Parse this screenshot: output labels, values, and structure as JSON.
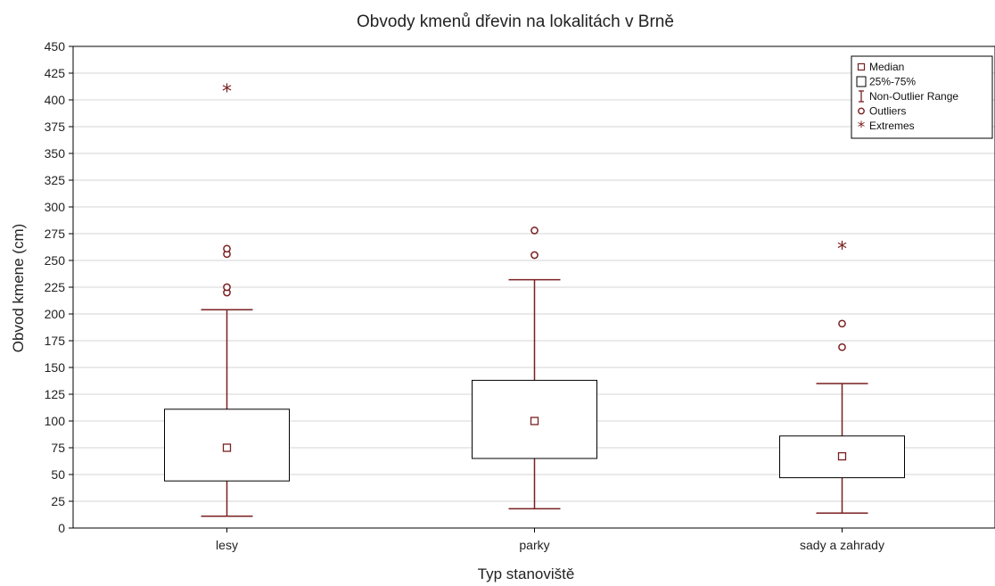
{
  "chart_data": {
    "type": "boxplot",
    "title": "Obvody kmenů dřevin na lokalitách v Brně",
    "xlabel": "Typ stanoviště",
    "ylabel": "Obvod kmene (cm)",
    "ylim": [
      0,
      450
    ],
    "yticks": [
      0,
      25,
      50,
      75,
      100,
      125,
      150,
      175,
      200,
      225,
      250,
      275,
      300,
      325,
      350,
      375,
      400,
      425,
      450
    ],
    "grid": true,
    "legend_position": "top-right",
    "legend": [
      "Median",
      "25%-75%",
      "Non-Outlier Range",
      "Outliers",
      "Extremes"
    ],
    "categories": [
      "lesy",
      "parky",
      "sady a zahrady"
    ],
    "boxes": [
      {
        "category": "lesy",
        "median": 75,
        "q1": 44,
        "q3": 111,
        "whisker_low": 11,
        "whisker_high": 204,
        "outliers": [
          220,
          225,
          256,
          261
        ],
        "extremes": [
          409
        ]
      },
      {
        "category": "parky",
        "median": 100,
        "q1": 65,
        "q3": 138,
        "whisker_low": 18,
        "whisker_high": 232,
        "outliers": [
          255,
          278
        ],
        "extremes": []
      },
      {
        "category": "sady a zahrady",
        "median": 67,
        "q1": 47,
        "q3": 86,
        "whisker_low": 14,
        "whisker_high": 135,
        "outliers": [
          169,
          191
        ],
        "extremes": [
          262
        ]
      }
    ],
    "colors": {
      "mark": "#7a1f1f",
      "box": "#000000",
      "grid": "#d4d4d4"
    }
  }
}
